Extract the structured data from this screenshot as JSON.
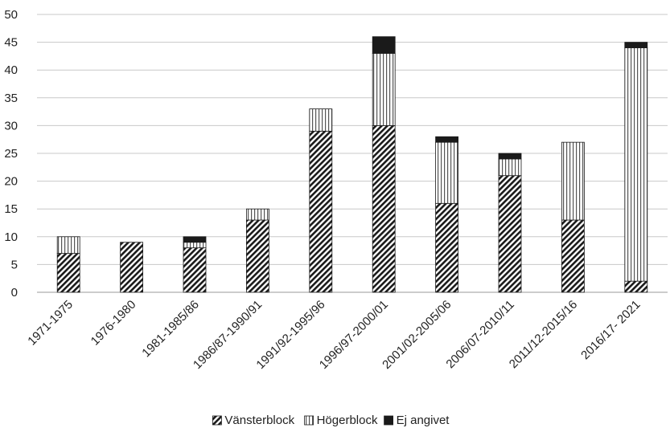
{
  "chart_data": {
    "type": "bar",
    "stacked": true,
    "categories": [
      "1971-1975",
      "1976-1980",
      "1981-1985/86",
      "1986/87-1990/91",
      "1991/92-1995/96",
      "1996/97-2000/01",
      "2001/02-2005/06",
      "2006/07-2010/11",
      "2011/12-2015/16",
      "2016/17- 2021"
    ],
    "series": [
      {
        "name": "Vänsterblock",
        "values": [
          7,
          9,
          8,
          13,
          29,
          30,
          16,
          21,
          13,
          2
        ],
        "pattern": "diagonal-hatch"
      },
      {
        "name": "Högerblock",
        "values": [
          3,
          0,
          1,
          2,
          4,
          13,
          11,
          3,
          14,
          42
        ],
        "pattern": "vertical-lines"
      },
      {
        "name": "Ej angivet",
        "values": [
          0,
          0,
          1,
          0,
          0,
          3,
          1,
          1,
          0,
          1
        ],
        "pattern": "solid"
      }
    ],
    "y_ticks": [
      "0",
      "5",
      "10",
      "15",
      "20",
      "25",
      "30",
      "35",
      "40",
      "45",
      "50"
    ],
    "ylim": [
      0,
      50
    ],
    "grid": true,
    "legend_position": "bottom",
    "colors": {
      "ink": "#1a1a1a",
      "grid": "#c8c8c8",
      "background": "#ffffff"
    }
  }
}
